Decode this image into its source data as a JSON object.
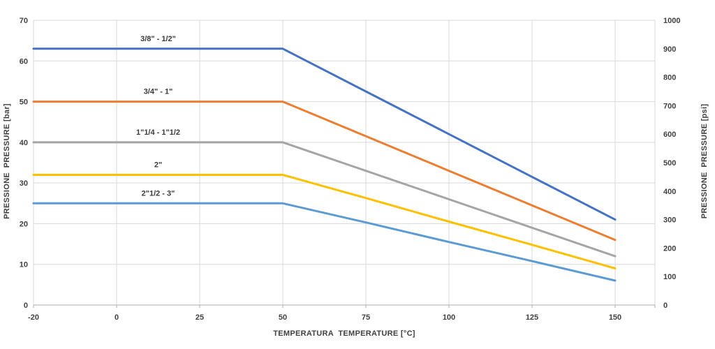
{
  "chart_data": {
    "type": "line",
    "title": "",
    "xlabel": "TEMPERATURA  TEMPERATURE [°C]",
    "x_categories": [
      -20,
      0,
      25,
      50,
      75,
      100,
      125,
      150
    ],
    "x_tick_labels": [
      "-20",
      "0",
      "25",
      "50",
      "75",
      "100",
      "125",
      "150"
    ],
    "axes": {
      "left": {
        "title": "PRESSIONE  PRESSURE [bar]",
        "min": 0,
        "max": 70,
        "ticks": [
          0,
          10,
          20,
          30,
          40,
          50,
          60,
          70
        ]
      },
      "right": {
        "title": "PRESSIONE  PRESSURE [psi]",
        "min": 0,
        "max": 1000,
        "ticks": [
          0,
          100,
          200,
          300,
          400,
          500,
          600,
          700,
          800,
          900,
          1000
        ]
      }
    },
    "grid": {
      "show": true,
      "color": "#d9d9d9",
      "axis_line_color": "#ababab"
    },
    "text_color": "#404040",
    "series": [
      {
        "name": "3/8\" - 1/2\"",
        "color": "#4472C4",
        "flat_value_bar": 63,
        "end_value_bar": 21,
        "values": [
          63,
          63,
          63,
          63,
          52.5,
          42,
          31.5,
          21
        ]
      },
      {
        "name": "3/4\" - 1\"",
        "color": "#ED7D31",
        "flat_value_bar": 50,
        "end_value_bar": 16,
        "values": [
          50,
          50,
          50,
          50,
          41.5,
          33,
          24.5,
          16
        ]
      },
      {
        "name": "1\"1/4 - 1\"1/2",
        "color": "#A5A5A5",
        "flat_value_bar": 40,
        "end_value_bar": 12,
        "values": [
          40,
          40,
          40,
          40,
          33,
          26,
          19,
          12
        ]
      },
      {
        "name": "2\"",
        "color": "#FFC000",
        "flat_value_bar": 32,
        "end_value_bar": 9,
        "values": [
          32,
          32,
          32,
          32,
          26.3,
          20.5,
          14.8,
          9
        ]
      },
      {
        "name": "2\"1/2 - 3\"",
        "color": "#5B9BD5",
        "flat_value_bar": 25,
        "end_value_bar": 6,
        "values": [
          25,
          25,
          25,
          25,
          20.3,
          15.5,
          10.8,
          6
        ]
      }
    ],
    "notes": "All series constant from -20°C to 50°C, then linear decline to 150°C. Left axis bar scale 0-70 equals right axis psi scale 0-1000."
  }
}
